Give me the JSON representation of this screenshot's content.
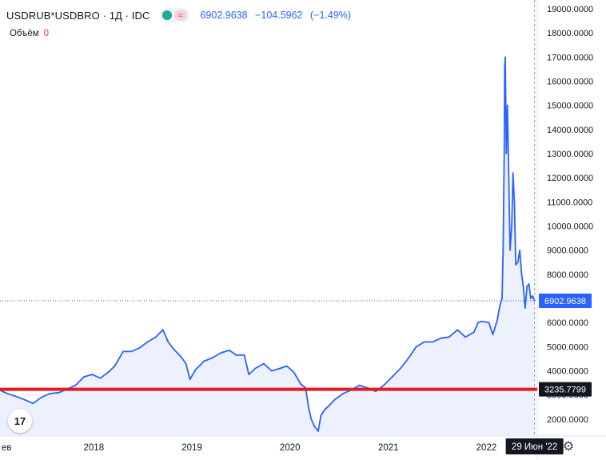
{
  "legend": {
    "symbol": "USDRUB*USDBRO · 1Д · IDC",
    "last": "6902.9638",
    "change": "−104.5962",
    "change_pct": "(−1.49%)",
    "dot_color": "#26a69a"
  },
  "volume": {
    "label": "Объём",
    "value": "0"
  },
  "icons": {
    "logo": "tradingview-logo-icon",
    "settings": "gear-icon"
  },
  "colors": {
    "line": "#2962ff",
    "area": "#e8eefc",
    "support": "#e31b23",
    "label_dark": "#131722"
  },
  "chart_data": {
    "type": "area",
    "y_ticks": [
      "2000.0000",
      "3000.0000",
      "4000.0000",
      "5000.0000",
      "6000.0000",
      "7000.0000",
      "8000.0000",
      "9000.0000",
      "10000.0000",
      "11000.0000",
      "12000.0000",
      "13000.0000",
      "14000.0000",
      "15000.0000",
      "16000.0000",
      "17000.0000",
      "18000.0000",
      "19000.0000"
    ],
    "ylim": [
      1300,
      19300
    ],
    "x_ticks": [
      "ев",
      "2018",
      "2019",
      "2020",
      "2021",
      "2022"
    ],
    "x_tick_dates": [
      "2017-02-01",
      "2018-01-01",
      "2019-01-01",
      "2020-01-01",
      "2021-01-01",
      "2022-01-01"
    ],
    "xlim": [
      "2017-01-17",
      "2022-07-09"
    ],
    "series": [
      {
        "x": [
          "2017-01-17",
          "2017-02-15",
          "2017-03-15",
          "2017-04-20",
          "2017-05-20",
          "2017-06-20",
          "2017-07-20",
          "2017-08-25",
          "2017-09-25",
          "2017-10-25",
          "2017-11-25",
          "2017-12-25",
          "2018-01-25",
          "2018-02-25",
          "2018-03-20",
          "2018-04-20",
          "2018-05-20",
          "2018-06-20",
          "2018-07-20",
          "2018-08-20",
          "2018-09-15",
          "2018-10-05",
          "2018-10-25",
          "2018-11-20",
          "2018-12-10",
          "2018-12-25",
          "2019-01-15",
          "2019-02-15",
          "2019-03-20",
          "2019-04-20",
          "2019-05-20",
          "2019-06-15",
          "2019-07-15",
          "2019-08-01",
          "2019-08-25",
          "2019-09-25",
          "2019-10-25",
          "2019-11-25",
          "2019-12-20",
          "2020-01-15",
          "2020-02-10",
          "2020-02-28",
          "2020-03-10",
          "2020-03-20",
          "2020-04-01",
          "2020-04-15",
          "2020-04-25",
          "2020-05-10",
          "2020-05-25",
          "2020-06-15",
          "2020-07-15",
          "2020-08-15",
          "2020-09-15",
          "2020-10-15",
          "2020-11-15",
          "2020-12-15",
          "2021-01-15",
          "2021-02-15",
          "2021-03-15",
          "2021-04-15",
          "2021-05-15",
          "2021-06-15",
          "2021-07-15",
          "2021-08-15",
          "2021-09-15",
          "2021-10-15",
          "2021-11-15",
          "2021-12-01",
          "2021-12-15",
          "2022-01-10",
          "2022-01-25",
          "2022-02-10",
          "2022-02-20",
          "2022-02-28",
          "2022-03-04",
          "2022-03-08",
          "2022-03-10",
          "2022-03-12",
          "2022-03-16",
          "2022-03-20",
          "2022-03-25",
          "2022-03-30",
          "2022-04-05",
          "2022-04-10",
          "2022-04-15",
          "2022-04-20",
          "2022-04-28",
          "2022-05-05",
          "2022-05-12",
          "2022-05-18",
          "2022-05-25",
          "2022-06-01",
          "2022-06-08",
          "2022-06-15",
          "2022-06-22",
          "2022-06-29"
        ],
        "y": [
          3200,
          3050,
          2950,
          2800,
          2650,
          2900,
          3050,
          3100,
          3250,
          3400,
          3750,
          3850,
          3700,
          3950,
          4200,
          4800,
          4800,
          4950,
          5200,
          5400,
          5700,
          5200,
          4900,
          4600,
          4300,
          3650,
          4050,
          4400,
          4550,
          4750,
          4850,
          4650,
          4650,
          3850,
          4100,
          4300,
          4000,
          4100,
          4200,
          3950,
          3450,
          3300,
          2500,
          2000,
          1700,
          1500,
          2150,
          2400,
          2550,
          2800,
          3050,
          3200,
          3400,
          3300,
          3150,
          3400,
          3750,
          4100,
          4500,
          5000,
          5200,
          5200,
          5350,
          5400,
          5700,
          5400,
          5600,
          6000,
          6050,
          6000,
          5500,
          6100,
          6700,
          7000,
          9000,
          13000,
          16600,
          17000,
          13000,
          15000,
          12000,
          9000,
          10000,
          12200,
          11000,
          8400,
          8500,
          9000,
          8000,
          7500,
          6600,
          7500,
          7600,
          7000,
          7100,
          6903
        ]
      }
    ],
    "support_level": 3235.7799,
    "support_label": "3235.7799",
    "last_value_label": "6902.9638",
    "date_label": "29 Июн '22"
  }
}
